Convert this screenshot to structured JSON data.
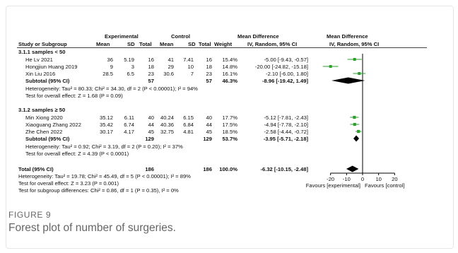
{
  "figure": {
    "label": "FIGURE 9",
    "caption": "Forest plot of number of surgeries."
  },
  "colors": {
    "point": "#2e9e2e",
    "ci_line": "#2e9e2e",
    "diamond": "#000000",
    "text": "#111111"
  },
  "chart_data": {
    "type": "forest",
    "header": {
      "group_experimental": "Experimental",
      "group_control": "Control",
      "md_top": "Mean Difference",
      "md_top_right": "Mean Difference",
      "study": "Study or Subgroup",
      "mean": "Mean",
      "sd": "SD",
      "total": "Total",
      "weight": "Weight",
      "md_method": "IV, Random, 95% CI",
      "md_method_right": "IV, Random, 95% CI"
    },
    "subgroups": [
      {
        "title": "3.1.1 samples < 50",
        "studies": [
          {
            "name": "He Lv 2021",
            "e_mean": "36",
            "e_sd": "5.19",
            "e_total": "16",
            "c_mean": "41",
            "c_sd": "7.41",
            "c_total": "16",
            "weight": "15.4%",
            "md_text": "-5.00 [-9.43, -0.57]",
            "md": -5.0,
            "lo": -9.43,
            "hi": -0.57,
            "w": 15.4
          },
          {
            "name": "Hongjiun Huang 2019",
            "e_mean": "9",
            "e_sd": "3",
            "e_total": "18",
            "c_mean": "29",
            "c_sd": "10",
            "c_total": "18",
            "weight": "14.8%",
            "md_text": "-20.00 [-24.82, -15.18]",
            "md": -20.0,
            "lo": -24.82,
            "hi": -15.18,
            "w": 14.8
          },
          {
            "name": "Xin Liu 2016",
            "e_mean": "28.5",
            "e_sd": "6.5",
            "e_total": "23",
            "c_mean": "30.6",
            "c_sd": "7",
            "c_total": "23",
            "weight": "16.1%",
            "md_text": "-2.10 [-6.00, 1.80]",
            "md": -2.1,
            "lo": -6.0,
            "hi": 1.8,
            "w": 16.1
          }
        ],
        "subtotal": {
          "label": "Subtotal (95% CI)",
          "e_total": "57",
          "c_total": "57",
          "weight": "46.3%",
          "md_text": "-8.96 [-19.42, 1.49]",
          "md": -8.96,
          "lo": -19.42,
          "hi": 1.49
        },
        "heterogeneity": "Heterogeneity: Tau² = 80.33; Chi² = 34.30, df = 2 (P < 0.00001); I² = 94%",
        "overall_test": "Test for overall effect: Z = 1.68 (P = 0.09)"
      },
      {
        "title": "3.1.2 samples ≥ 50",
        "studies": [
          {
            "name": "Min Xiong 2020",
            "e_mean": "35.12",
            "e_sd": "6.11",
            "e_total": "40",
            "c_mean": "40.24",
            "c_sd": "6.15",
            "c_total": "40",
            "weight": "17.7%",
            "md_text": "-5.12 [-7.81, -2.43]",
            "md": -5.12,
            "lo": -7.81,
            "hi": -2.43,
            "w": 17.7
          },
          {
            "name": "Xiaoguang Zhang 2022",
            "e_mean": "35.42",
            "e_sd": "6.74",
            "e_total": "44",
            "c_mean": "40.36",
            "c_sd": "6.84",
            "c_total": "44",
            "weight": "17.5%",
            "md_text": "-4.94 [-7.78, -2.10]",
            "md": -4.94,
            "lo": -7.78,
            "hi": -2.1,
            "w": 17.5
          },
          {
            "name": "Zhe Chen 2022",
            "e_mean": "30.17",
            "e_sd": "4.17",
            "e_total": "45",
            "c_mean": "32.75",
            "c_sd": "4.81",
            "c_total": "45",
            "weight": "18.5%",
            "md_text": "-2.58 [-4.44, -0.72]",
            "md": -2.58,
            "lo": -4.44,
            "hi": -0.72,
            "w": 18.5
          }
        ],
        "subtotal": {
          "label": "Subtotal (95% CI)",
          "e_total": "129",
          "c_total": "129",
          "weight": "53.7%",
          "md_text": "-3.95 [-5.71, -2.18]",
          "md": -3.95,
          "lo": -5.71,
          "hi": -2.18
        },
        "heterogeneity": "Heterogeneity: Tau² = 0.92; Chi² = 3.19, df = 2 (P = 0.20); I² = 37%",
        "overall_test": "Test for overall effect: Z = 4.39 (P < 0.0001)"
      }
    ],
    "total": {
      "label": "Total (95% CI)",
      "e_total": "186",
      "c_total": "186",
      "weight": "100.0%",
      "md_text": "-6.32 [-10.15, -2.48]",
      "md": -6.32,
      "lo": -10.15,
      "hi": -2.48
    },
    "total_heterogeneity": "Heterogeneity: Tau² = 19.78; Chi² = 45.49, df = 5 (P < 0.00001); I² = 89%",
    "total_overall_test": "Test for overall effect: Z = 3.23 (P = 0.001)",
    "subgroup_differences": "Test for subgroup differences: Chi² = 0.86, df = 1 (P = 0.35), I² = 0%",
    "axis": {
      "xlim": [
        -30,
        30
      ],
      "ticks": [
        -20,
        -10,
        0,
        10,
        20
      ],
      "tick_labels": [
        "-20",
        "-10",
        "0",
        "10",
        "20"
      ],
      "favours_left": "Favours [experimental]",
      "favours_right": "Favours [control]"
    }
  }
}
